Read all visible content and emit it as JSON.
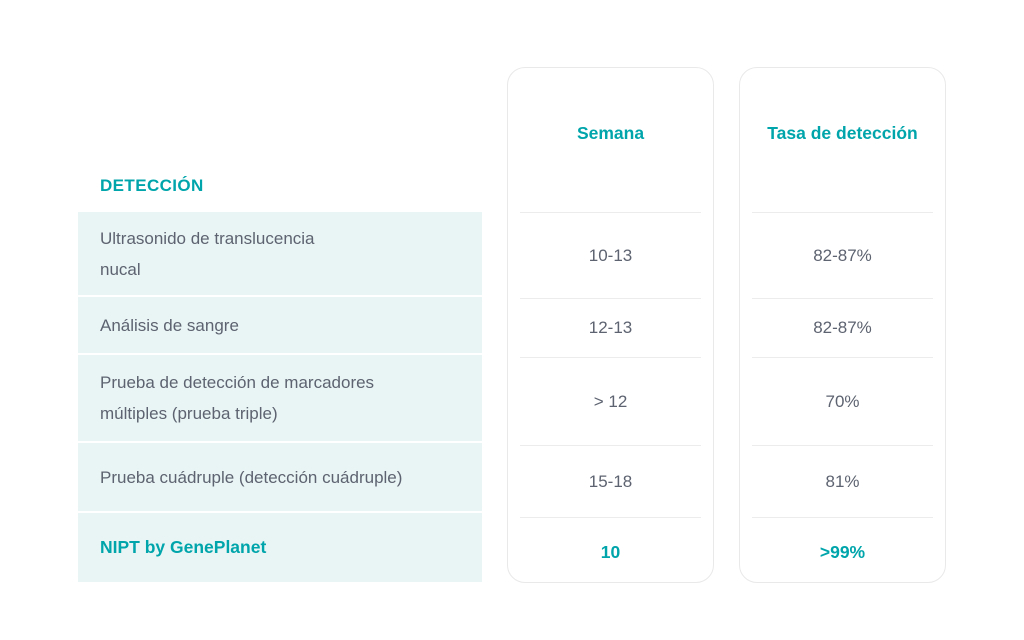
{
  "colors": {
    "accent_teal": "#00a5ab",
    "body_text": "#5d6370",
    "row_background": "#e9f5f5",
    "card_border": "#e9e9e9",
    "divider": "#ececec"
  },
  "table": {
    "header_label": "DETECCIÓN",
    "columns": [
      {
        "label": "Semana"
      },
      {
        "label": "Tasa de detección"
      }
    ],
    "rows": [
      {
        "label": "Ultrasonido de translucencia\nnucal",
        "semana": "10-13",
        "tasa": "82-87%"
      },
      {
        "label": "Análisis de sangre",
        "semana": "12-13",
        "tasa": "82-87%"
      },
      {
        "label": "Prueba de detección de marcadores\nmúltiples (prueba triple)",
        "semana": "> 12",
        "tasa": "70%"
      },
      {
        "label": "Prueba cuádruple (detección cuádruple)",
        "semana": "15-18",
        "tasa": "81%"
      },
      {
        "label": "NIPT by GenePlanet",
        "semana": "10",
        "tasa": ">99%"
      }
    ]
  },
  "chart_data": {
    "type": "table",
    "title": "",
    "columns": [
      "DETECCIÓN",
      "Semana",
      "Tasa de detección"
    ],
    "rows": [
      [
        "Ultrasonido de translucencia nucal",
        "10-13",
        "82-87%"
      ],
      [
        "Análisis de sangre",
        "12-13",
        "82-87%"
      ],
      [
        "Prueba de detección de marcadores múltiples (prueba triple)",
        "> 12",
        "70%"
      ],
      [
        "Prueba cuádruple (detección cuádruple)",
        "15-18",
        "81%"
      ],
      [
        "NIPT by GenePlanet",
        "10",
        ">99%"
      ]
    ],
    "highlighted_row": "NIPT by GenePlanet"
  }
}
